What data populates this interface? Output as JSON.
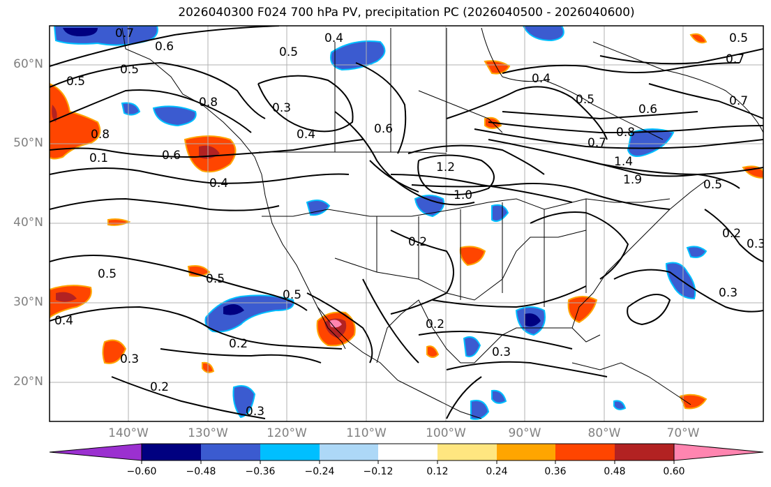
{
  "title": "2026040300 F024 700 hPa PV, precipitation PC (2026040500 - 2026040600)",
  "lat_labels": [
    "60°N",
    "50°N",
    "40°N",
    "30°N",
    "20°N"
  ],
  "lon_labels": [
    "140°W",
    "130°W",
    "120°W",
    "110°W",
    "100°W",
    "90°W",
    "80°W",
    "70°W"
  ],
  "colorbar": {
    "ticks": [
      "−0.60",
      "−0.48",
      "−0.36",
      "−0.24",
      "−0.12",
      "0.12",
      "0.24",
      "0.36",
      "0.48",
      "0.60"
    ],
    "colors": [
      "#9b30d0",
      "#000080",
      "#3b5bd0",
      "#00bfff",
      "#add8f7",
      "#ffffff",
      "#ffe680",
      "#ffa500",
      "#ff4500",
      "#b22222",
      "#ff85b0"
    ]
  },
  "contour_labels": [
    "0.7",
    "0.6",
    "0.5",
    "0.4",
    "0.5",
    "0.8",
    "0.5",
    "0.7",
    "0.8",
    "0.3",
    "0.4",
    "0.6",
    "0.4",
    "0.6",
    "0.7",
    "0.1",
    "1.2",
    "1.0",
    "0.4",
    "0.5",
    "0.6",
    "0.8",
    "0.7",
    "1.4",
    "1.9",
    "0.5",
    "0.2",
    "0.5",
    "0.5",
    "0.5",
    "0.4",
    "0.2",
    "0.5",
    "0.3",
    "0.3",
    "0.2",
    "0.3",
    "0.2",
    "0.3",
    "0.2",
    "0.3"
  ]
}
